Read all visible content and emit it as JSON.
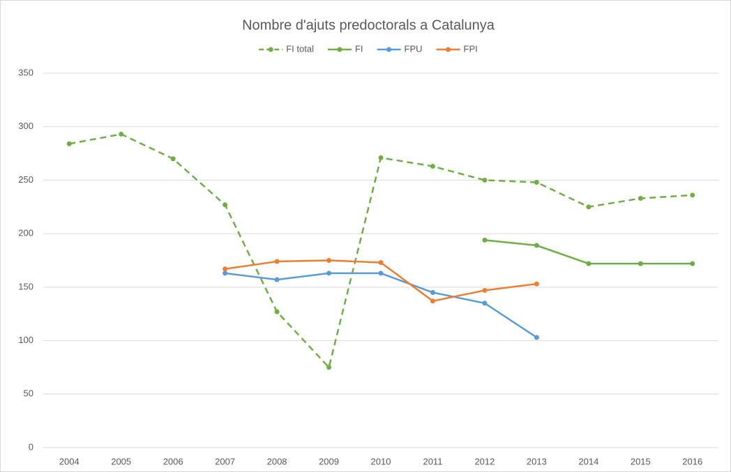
{
  "chart_data": {
    "type": "line",
    "title": "Nombre d'ajuts predoctorals a Catalunya",
    "categories": [
      "2004",
      "2005",
      "2006",
      "2007",
      "2008",
      "2009",
      "2010",
      "2011",
      "2012",
      "2013",
      "2014",
      "2015",
      "2016"
    ],
    "series": [
      {
        "name": "FI total",
        "color": "#70ad47",
        "dashed": true,
        "values": [
          284,
          293,
          270,
          227,
          127,
          75,
          271,
          263,
          250,
          248,
          225,
          233,
          236
        ]
      },
      {
        "name": "FI",
        "color": "#70ad47",
        "dashed": false,
        "values": [
          null,
          null,
          null,
          null,
          null,
          null,
          null,
          null,
          194,
          189,
          172,
          172,
          172
        ]
      },
      {
        "name": "FPU",
        "color": "#5b9bd5",
        "dashed": false,
        "values": [
          null,
          null,
          null,
          163,
          157,
          163,
          163,
          145,
          135,
          103,
          null,
          null,
          null
        ]
      },
      {
        "name": "FPI",
        "color": "#ed7d31",
        "dashed": false,
        "values": [
          null,
          null,
          null,
          167,
          174,
          175,
          173,
          137,
          147,
          153,
          null,
          null,
          null
        ]
      }
    ],
    "ylim": [
      0,
      350
    ],
    "yticks": [
      0,
      50,
      100,
      150,
      200,
      250,
      300,
      350
    ],
    "grid": true,
    "legend": "top"
  }
}
